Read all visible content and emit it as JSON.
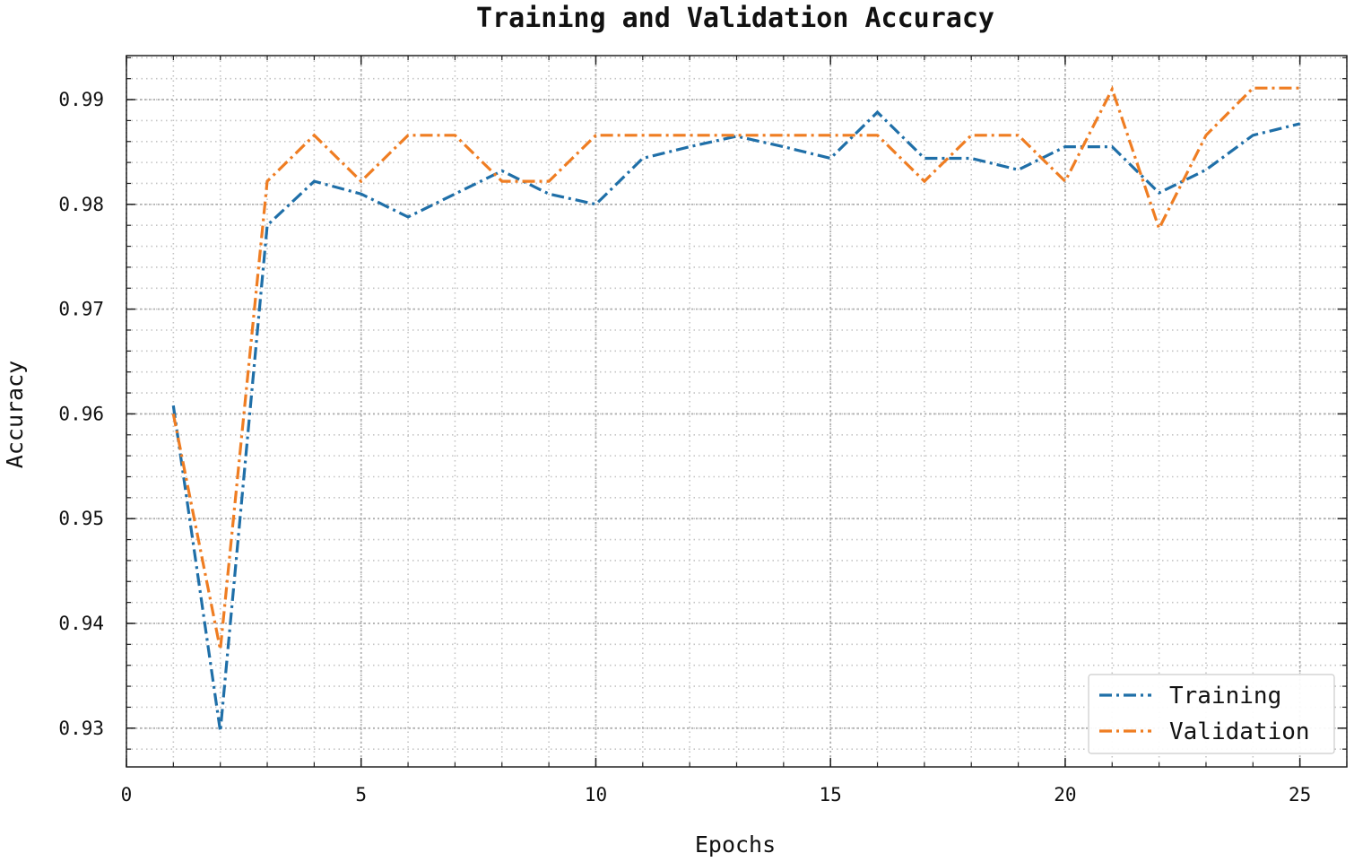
{
  "chart_data": {
    "type": "line",
    "title": "Training and Validation Accuracy",
    "xlabel": "Epochs",
    "ylabel": "Accuracy",
    "xlim": [
      0,
      26
    ],
    "ylim": [
      0.9263,
      0.9942
    ],
    "x_ticks": [
      0,
      5,
      10,
      15,
      20,
      25
    ],
    "y_ticks": [
      0.93,
      0.94,
      0.95,
      0.96,
      0.97,
      0.98,
      0.99
    ],
    "x_minor_step": 1,
    "y_minor_step": 0.002,
    "grid": true,
    "legend_position": "lower-right",
    "x": [
      1,
      2,
      3,
      4,
      5,
      6,
      7,
      8,
      9,
      10,
      11,
      12,
      13,
      14,
      15,
      16,
      17,
      18,
      19,
      20,
      21,
      22,
      23,
      24,
      25
    ],
    "series": [
      {
        "name": "Training",
        "color": "#1f6fa8",
        "values": [
          0.9608,
          0.9297,
          0.978,
          0.9822,
          0.981,
          0.9788,
          0.981,
          0.9832,
          0.981,
          0.98,
          0.9844,
          0.9855,
          0.9865,
          0.9855,
          0.9844,
          0.9888,
          0.9844,
          0.9844,
          0.9833,
          0.9855,
          0.9855,
          0.9811,
          0.9833,
          0.9866,
          0.9877
        ]
      },
      {
        "name": "Validation",
        "color": "#ef7d22",
        "values": [
          0.96,
          0.9375,
          0.9822,
          0.9866,
          0.9822,
          0.9866,
          0.9866,
          0.9822,
          0.9822,
          0.9866,
          0.9866,
          0.9866,
          0.9866,
          0.9866,
          0.9866,
          0.9866,
          0.9822,
          0.9866,
          0.9866,
          0.9822,
          0.991,
          0.9777,
          0.9866,
          0.9911,
          0.9911
        ]
      }
    ]
  }
}
